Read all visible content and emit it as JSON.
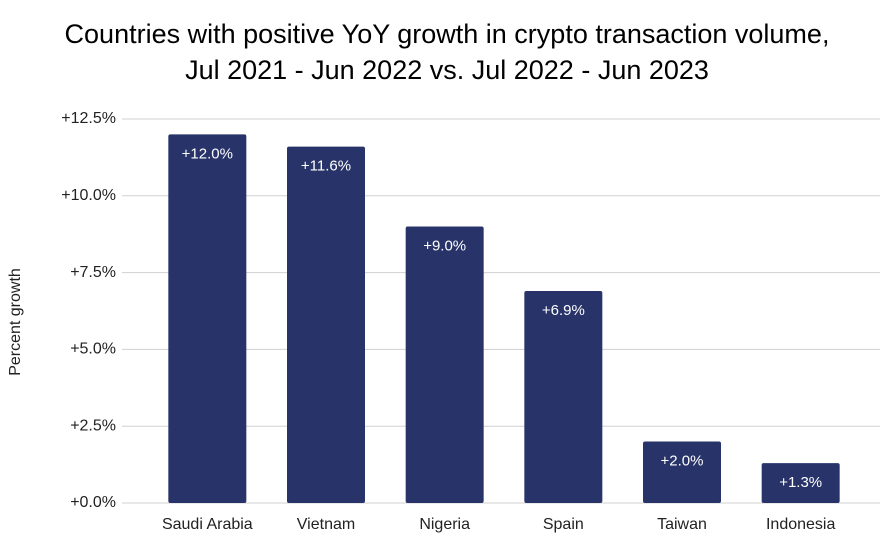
{
  "chart_data": {
    "type": "bar",
    "title": [
      "Countries with positive YoY growth in crypto transaction volume,",
      "Jul 2021 - Jun 2022 vs. Jul 2022 - Jun 2023"
    ],
    "y_label": "Percent growth",
    "categories": [
      "Saudi Arabia",
      "Vietnam",
      "Nigeria",
      "Spain",
      "Taiwan",
      "Indonesia"
    ],
    "values": [
      12.0,
      11.6,
      9.0,
      6.9,
      2.0,
      1.3
    ],
    "value_labels": [
      "+12.0%",
      "+11.6%",
      "+9.0%",
      "+6.9%",
      "+2.0%",
      "+1.3%"
    ],
    "color": "#283469",
    "ylim": [
      0,
      12.5
    ],
    "yticks": [
      {
        "value": 0,
        "label": "+0.0%"
      },
      {
        "value": 2.5,
        "label": "+2.5%"
      },
      {
        "value": 5,
        "label": "+5.0%"
      },
      {
        "value": 7.5,
        "label": "+7.5%"
      },
      {
        "value": 10,
        "label": "+10.0%"
      },
      {
        "value": 12.5,
        "label": "+12.5%"
      }
    ],
    "grid": true
  }
}
